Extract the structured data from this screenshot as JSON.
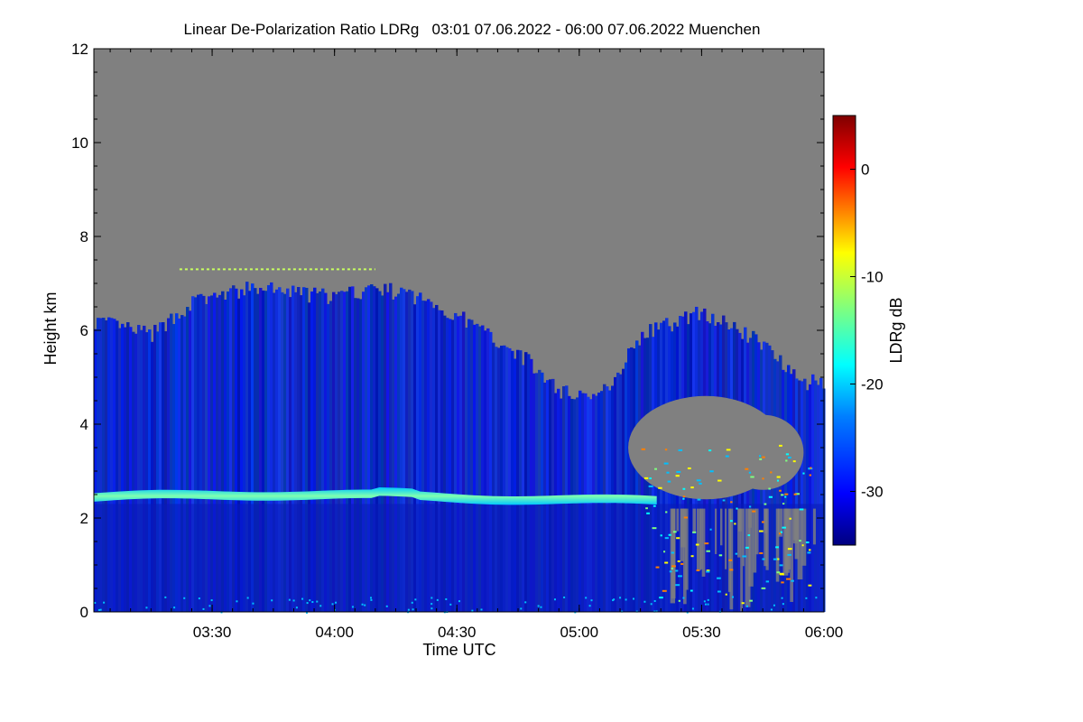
{
  "chart_data": {
    "type": "heatmap",
    "title": "Linear De-Polarization Ratio LDRg   03:01 07.06.2022 - 06:00 07.06.2022 Muenchen",
    "xlabel": "Time UTC",
    "ylabel": "Height km",
    "xlim": [
      "03:01",
      "06:00"
    ],
    "x_ticks": [
      "03:30",
      "04:00",
      "04:30",
      "05:00",
      "05:30",
      "06:00"
    ],
    "ylim": [
      0,
      12
    ],
    "y_ticks": [
      0,
      2,
      4,
      6,
      8,
      10,
      12
    ],
    "colorbar": {
      "label": "LDRg dB",
      "range": [
        -35,
        5
      ],
      "ticks": [
        0,
        -10,
        -20,
        -30
      ],
      "colormap": [
        "#00007f",
        "#0000ff",
        "#007fff",
        "#00ffff",
        "#7fff7f",
        "#ffff00",
        "#ff7f00",
        "#ff0000",
        "#7f0000"
      ]
    },
    "no_data_color": "#808080",
    "features": {
      "bright_layer": {
        "description_value_db": -22,
        "height_km_start": 2.35,
        "height_km_peak": 2.5,
        "time_end": "05:20"
      },
      "cloud_top_km": [
        {
          "t": "03:01",
          "h": 6.2
        },
        {
          "t": "03:15",
          "h": 5.9
        },
        {
          "t": "03:25",
          "h": 6.6
        },
        {
          "t": "03:40",
          "h": 6.9
        },
        {
          "t": "04:00",
          "h": 6.7
        },
        {
          "t": "04:10",
          "h": 6.9
        },
        {
          "t": "04:20",
          "h": 6.7
        },
        {
          "t": "04:30",
          "h": 6.3
        },
        {
          "t": "04:45",
          "h": 5.5
        },
        {
          "t": "04:55",
          "h": 4.7
        },
        {
          "t": "05:05",
          "h": 4.6
        },
        {
          "t": "05:15",
          "h": 5.9
        },
        {
          "t": "05:30",
          "h": 6.4
        },
        {
          "t": "05:45",
          "h": 5.7
        },
        {
          "t": "05:55",
          "h": 4.9
        }
      ],
      "thin_layer_km": 7.3
    }
  }
}
